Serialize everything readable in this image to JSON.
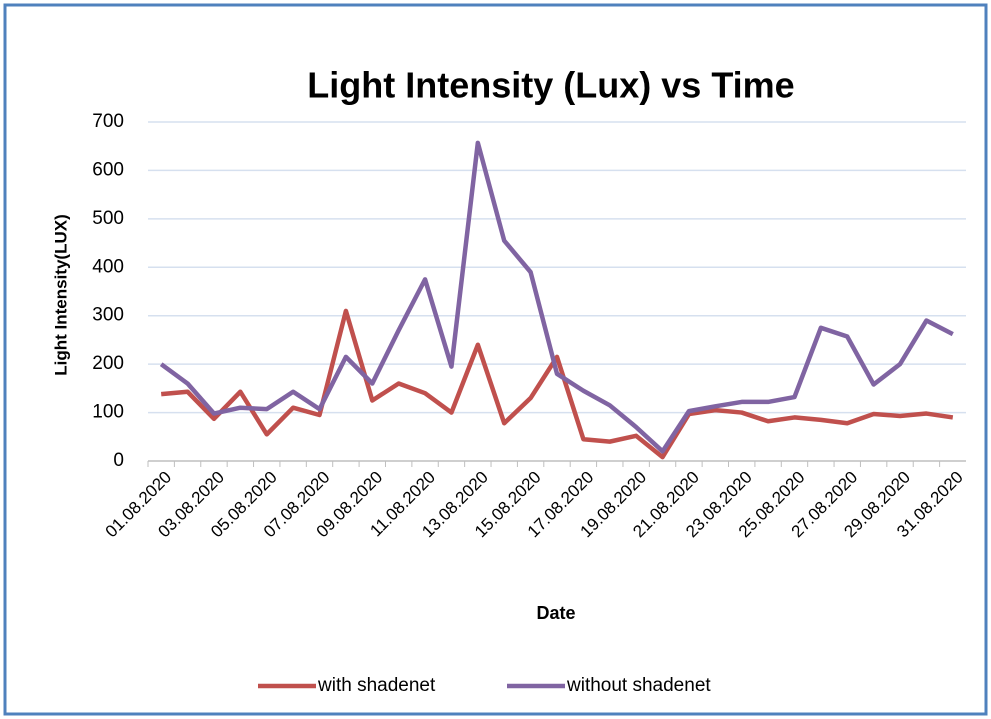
{
  "chart_data": {
    "type": "line",
    "title": "Light Intensity (Lux) vs Time",
    "x_label": "Date",
    "y_label": "Light Intensity(LUX)",
    "categories": [
      "01.08.2020",
      null,
      "03.08.2020",
      null,
      "05.08.2020",
      null,
      "07.08.2020",
      null,
      "09.08.2020",
      null,
      "11.08.2020",
      null,
      "13.08.2020",
      null,
      "15.08.2020",
      null,
      "17.08.2020",
      null,
      "19.08.2020",
      null,
      "21.08.2020",
      null,
      "23.08.2020",
      null,
      "25.08.2020",
      null,
      "27.08.2020",
      null,
      "29.08.2020",
      null,
      "31.08.2020"
    ],
    "series": [
      {
        "name": "with shadenet",
        "color": "#c0504d",
        "values": [
          138,
          143,
          87,
          143,
          55,
          110,
          95,
          310,
          125,
          160,
          140,
          100,
          240,
          78,
          130,
          215,
          45,
          40,
          52,
          8,
          97,
          105,
          100,
          82,
          90,
          85,
          78,
          97,
          93,
          98,
          90
        ]
      },
      {
        "name": "without shadenet",
        "color": "#8064a2",
        "values": [
          200,
          160,
          98,
          110,
          107,
          143,
          107,
          215,
          160,
          270,
          375,
          195,
          657,
          455,
          390,
          180,
          145,
          115,
          70,
          20,
          103,
          113,
          122,
          122,
          132,
          275,
          257,
          158,
          200,
          290,
          262
        ]
      }
    ],
    "ylim": [
      0,
      700
    ],
    "yticks": [
      0,
      100,
      200,
      300,
      400,
      500,
      600,
      700
    ],
    "grid": true,
    "legend": "bottom"
  }
}
